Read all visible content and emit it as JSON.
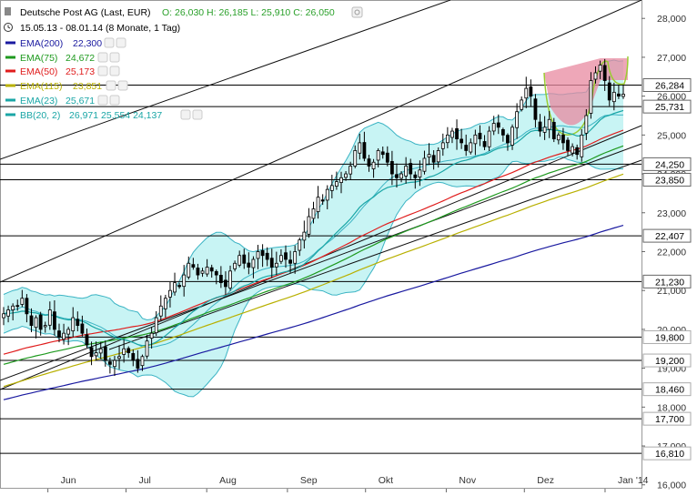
{
  "header": {
    "title": "Deutsche Post AG (Last, EUR)",
    "ohlc": "O: 26,030   H: 26,185   L: 25,910   C: 26,050",
    "period": "15.05.13 - 08.01.14 (8 Monate, 1 Tag)"
  },
  "legend": [
    {
      "label": "EMA(200)",
      "value": "22,300",
      "color": "#1a1aa0"
    },
    {
      "label": "EMA(75)",
      "value": "24,672",
      "color": "#1f9a1f"
    },
    {
      "label": "EMA(50)",
      "value": "25,173",
      "color": "#e01c1c"
    },
    {
      "label": "EMA(115)",
      "value": "23,851",
      "color": "#b8b000"
    },
    {
      "label": "EMA(23)",
      "value": "25,671",
      "color": "#1aa6a6"
    },
    {
      "label": "BB(20, 2)",
      "value": "26,971  25,554  24,137",
      "color": "#1aa6a6"
    }
  ],
  "colors": {
    "price_text": "#2aa02a",
    "bb_fill": "#c8f4f4",
    "bb_line": "#3cb4c4",
    "cup_fill": "#e88aa0",
    "cup_line": "#9acd32",
    "candle": "#000000"
  },
  "chart_data": {
    "type": "candlestick",
    "title": "Deutsche Post AG (Last, EUR)",
    "ylim": [
      15.9,
      28.45
    ],
    "y_ticks": [
      16.0,
      17.0,
      18.0,
      19.0,
      20.0,
      21.0,
      22.0,
      23.0,
      24.0,
      25.0,
      26.0,
      27.0,
      28.0
    ],
    "y_tick_labels": [
      "16,000",
      "17,000",
      "18,000",
      "19,000",
      "20,000",
      "21,000",
      "22,000",
      "23,000",
      "24,000",
      "25,000",
      "26,000",
      "27,000",
      "28,000"
    ],
    "months": [
      {
        "label": "Jun",
        "date": "2013-06-01"
      },
      {
        "label": "Jul",
        "date": "2013-07-01"
      },
      {
        "label": "Aug",
        "date": "2013-08-01"
      },
      {
        "label": "Sep",
        "date": "2013-09-01"
      },
      {
        "label": "Okt",
        "date": "2013-10-01"
      },
      {
        "label": "Nov",
        "date": "2013-11-01"
      },
      {
        "label": "Dez",
        "date": "2013-12-01"
      },
      {
        "label": "Jan '14",
        "date": "2014-01-01"
      }
    ],
    "price_levels": [
      {
        "value": 26.284,
        "label": "26,284",
        "emph": true
      },
      {
        "value": 25.731,
        "label": "25,731",
        "emph": true
      },
      {
        "value": 24.25,
        "label": "24,250",
        "emph": true
      },
      {
        "value": 23.85,
        "label": "23,850",
        "emph": true
      },
      {
        "value": 22.407,
        "label": "22,407",
        "emph": true
      },
      {
        "value": 21.23,
        "label": "21,230",
        "emph": true
      },
      {
        "value": 19.8,
        "label": "19,800",
        "emph": false
      },
      {
        "value": 19.2,
        "label": "19,200",
        "emph": false
      },
      {
        "value": 18.46,
        "label": "18,460",
        "emph": false
      },
      {
        "value": 17.7,
        "label": "17,700",
        "emph": false
      },
      {
        "value": 16.81,
        "label": "16,810",
        "emph": false
      }
    ],
    "closes": [
      20.4,
      20.5,
      20.6,
      20.6,
      20.8,
      20.4,
      20.1,
      20.3,
      20.0,
      20.1,
      20.5,
      20.0,
      19.8,
      19.9,
      20.0,
      20.3,
      20.1,
      19.9,
      19.6,
      19.3,
      19.4,
      19.5,
      19.2,
      19.1,
      19.2,
      19.3,
      19.5,
      19.4,
      19.2,
      19.0,
      19.3,
      19.7,
      19.9,
      20.3,
      20.6,
      20.8,
      21.0,
      21.2,
      21.1,
      21.4,
      21.7,
      21.6,
      21.4,
      21.5,
      21.6,
      21.5,
      21.4,
      21.2,
      21.1,
      21.5,
      21.7,
      21.9,
      21.7,
      21.6,
      21.8,
      22.0,
      21.9,
      21.8,
      21.6,
      21.7,
      21.9,
      21.8,
      21.7,
      22.0,
      22.3,
      22.5,
      22.9,
      23.1,
      23.4,
      23.3,
      23.6,
      23.7,
      23.8,
      23.9,
      24.0,
      24.2,
      24.6,
      24.8,
      24.4,
      24.2,
      24.3,
      24.6,
      24.5,
      24.3,
      24.0,
      23.9,
      24.0,
      24.2,
      24.0,
      23.9,
      24.1,
      24.4,
      24.5,
      24.3,
      24.6,
      24.8,
      25.0,
      25.1,
      24.9,
      24.8,
      24.6,
      24.8,
      25.0,
      24.9,
      24.7,
      25.1,
      25.3,
      25.2,
      25.0,
      24.8,
      25.2,
      25.6,
      25.9,
      26.2,
      26.0,
      25.4,
      25.1,
      25.2,
      25.4,
      24.9,
      25.0,
      24.8,
      24.6,
      24.7,
      24.5,
      25.0,
      25.5,
      26.4,
      26.6,
      26.8,
      26.4,
      25.9,
      26.1,
      26.0,
      26.05
    ],
    "ema200": [
      17.8,
      22.3
    ],
    "ema115": [
      18.2,
      23.851
    ],
    "ema75": [
      18.4,
      24.672
    ],
    "ema50": [
      18.8,
      25.173
    ],
    "ema23": [
      19.4,
      25.671
    ],
    "bb_upper_last": 26.971,
    "bb_mid_last": 25.554,
    "bb_lower_last": 24.137
  }
}
